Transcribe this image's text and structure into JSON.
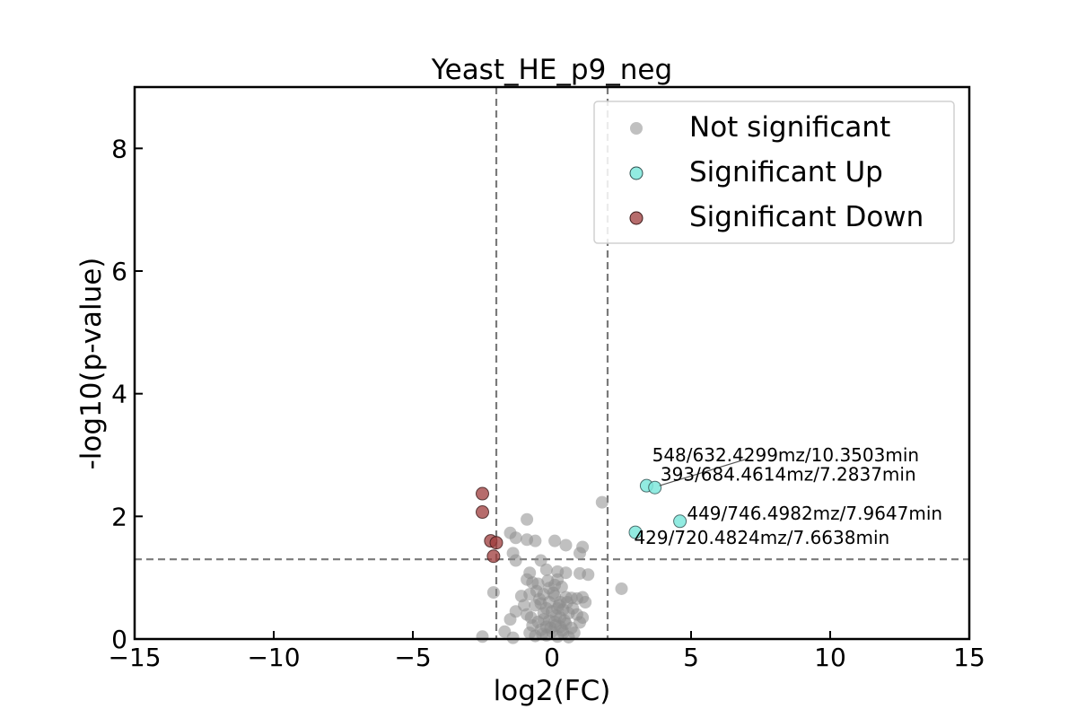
{
  "chart_data": {
    "type": "scatter",
    "title": "Yeast_HE_p9_neg",
    "xlabel": "log2(FC)",
    "ylabel": "-log10(p-value)",
    "xlim": [
      -15,
      15
    ],
    "ylim": [
      0,
      9
    ],
    "xticks": [
      -15,
      -10,
      -5,
      0,
      5,
      10,
      15
    ],
    "xtick_labels": [
      "−15",
      "−10",
      "−5",
      "0",
      "5",
      "10",
      "15"
    ],
    "yticks": [
      0,
      2,
      4,
      6,
      8
    ],
    "ytick_labels": [
      "0",
      "2",
      "4",
      "6",
      "8"
    ],
    "grid": false,
    "legend_placement": "top-right",
    "thresholds": {
      "x": [
        -2,
        2
      ],
      "y": [
        1.3
      ]
    },
    "colors": {
      "not_significant": "#8c8c8c",
      "significant_up": "#7fe7dc",
      "significant_down": "#9e3b3b",
      "threshold_line": "#7a7a7a"
    },
    "series": [
      {
        "name": "Not significant",
        "key": "not_significant",
        "points": [
          [
            1.8,
            2.23
          ],
          [
            -0.9,
            1.95
          ],
          [
            -1.5,
            1.73
          ],
          [
            -1.3,
            1.65
          ],
          [
            -0.6,
            1.6
          ],
          [
            -0.9,
            1.62
          ],
          [
            0.1,
            1.6
          ],
          [
            0.5,
            1.53
          ],
          [
            1.1,
            1.5
          ],
          [
            1.0,
            1.4
          ],
          [
            -1.4,
            1.4
          ],
          [
            -1.3,
            1.28
          ],
          [
            -0.4,
            1.28
          ],
          [
            -0.2,
            1.13
          ],
          [
            0.2,
            1.1
          ],
          [
            0.5,
            1.08
          ],
          [
            1.0,
            1.07
          ],
          [
            1.3,
            1.05
          ],
          [
            0.2,
            0.97
          ],
          [
            -0.8,
            1.08
          ],
          [
            -0.9,
            0.97
          ],
          [
            -0.7,
            0.92
          ],
          [
            -0.5,
            0.9
          ],
          [
            0.1,
            0.88
          ],
          [
            -0.1,
            0.83
          ],
          [
            2.5,
            0.82
          ],
          [
            -2.1,
            0.76
          ],
          [
            -0.3,
            0.73
          ],
          [
            -0.8,
            0.73
          ],
          [
            0.1,
            0.7
          ],
          [
            0.5,
            0.68
          ],
          [
            0.7,
            0.67
          ],
          [
            0.9,
            0.66
          ],
          [
            1.1,
            0.68
          ],
          [
            0.3,
            0.6
          ],
          [
            -0.1,
            0.6
          ],
          [
            -0.4,
            0.58
          ],
          [
            -0.6,
            0.55
          ],
          [
            -0.2,
            0.5
          ],
          [
            0.2,
            0.5
          ],
          [
            0.4,
            0.48
          ],
          [
            0.0,
            0.45
          ],
          [
            -1.3,
            0.45
          ],
          [
            -0.9,
            0.4
          ],
          [
            0.6,
            0.42
          ],
          [
            0.9,
            0.4
          ],
          [
            1.1,
            0.35
          ],
          [
            0.3,
            0.35
          ],
          [
            -0.3,
            0.32
          ],
          [
            -1.5,
            0.32
          ],
          [
            -0.5,
            0.28
          ],
          [
            0.1,
            0.28
          ],
          [
            0.5,
            0.25
          ],
          [
            1.0,
            0.27
          ],
          [
            -0.7,
            0.22
          ],
          [
            -0.2,
            0.2
          ],
          [
            0.3,
            0.2
          ],
          [
            0.7,
            0.18
          ],
          [
            -0.4,
            0.15
          ],
          [
            0.0,
            0.12
          ],
          [
            -1.7,
            0.12
          ],
          [
            0.4,
            0.1
          ],
          [
            -0.8,
            0.1
          ],
          [
            0.8,
            0.1
          ],
          [
            -2.5,
            0.04
          ],
          [
            -1.4,
            0.02
          ],
          [
            -0.2,
            0.06
          ],
          [
            0.2,
            0.04
          ],
          [
            -0.6,
            0.05
          ],
          [
            0.6,
            0.03
          ],
          [
            -0.1,
            0.3
          ],
          [
            0.15,
            0.38
          ],
          [
            -0.3,
            0.42
          ],
          [
            0.25,
            0.55
          ],
          [
            -0.45,
            0.65
          ],
          [
            0.05,
            0.75
          ],
          [
            0.35,
            0.85
          ],
          [
            -0.15,
            0.95
          ],
          [
            -0.55,
            0.78
          ],
          [
            0.45,
            0.3
          ],
          [
            -1.0,
            0.55
          ],
          [
            0.55,
            0.6
          ],
          [
            -0.75,
            0.35
          ],
          [
            0.75,
            0.5
          ],
          [
            -0.05,
            0.18
          ],
          [
            0.12,
            0.22
          ],
          [
            -0.35,
            0.08
          ],
          [
            0.38,
            0.14
          ],
          [
            -1.1,
            0.7
          ],
          [
            1.2,
            0.6
          ]
        ]
      },
      {
        "name": "Significant Up",
        "key": "significant_up",
        "points": [
          [
            3.4,
            2.5
          ],
          [
            3.7,
            2.47
          ],
          [
            4.6,
            1.92
          ],
          [
            3.0,
            1.74
          ]
        ]
      },
      {
        "name": "Significant Down",
        "key": "significant_down",
        "points": [
          [
            -2.5,
            2.37
          ],
          [
            -2.5,
            2.07
          ],
          [
            -2.2,
            1.6
          ],
          [
            -2.0,
            1.57
          ],
          [
            -2.1,
            1.35
          ]
        ]
      }
    ],
    "annotations": [
      {
        "text": "548/632.4299mz/10.3503min",
        "x": 3.4,
        "y": 2.5,
        "text_x": 3.6,
        "text_y": 2.9,
        "leader": false
      },
      {
        "text": "393/684.4614mz/7.2837min",
        "x": 3.7,
        "y": 2.47,
        "text_x": 3.9,
        "text_y": 2.58,
        "leader": true
      },
      {
        "text": "449/746.4982mz/7.9647min",
        "x": 4.6,
        "y": 1.92,
        "text_x": 4.85,
        "text_y": 1.95,
        "leader": false
      },
      {
        "text": "429/720.4824mz/7.6638min",
        "x": 3.0,
        "y": 1.74,
        "text_x": 2.95,
        "text_y": 1.55,
        "leader": false
      }
    ]
  }
}
